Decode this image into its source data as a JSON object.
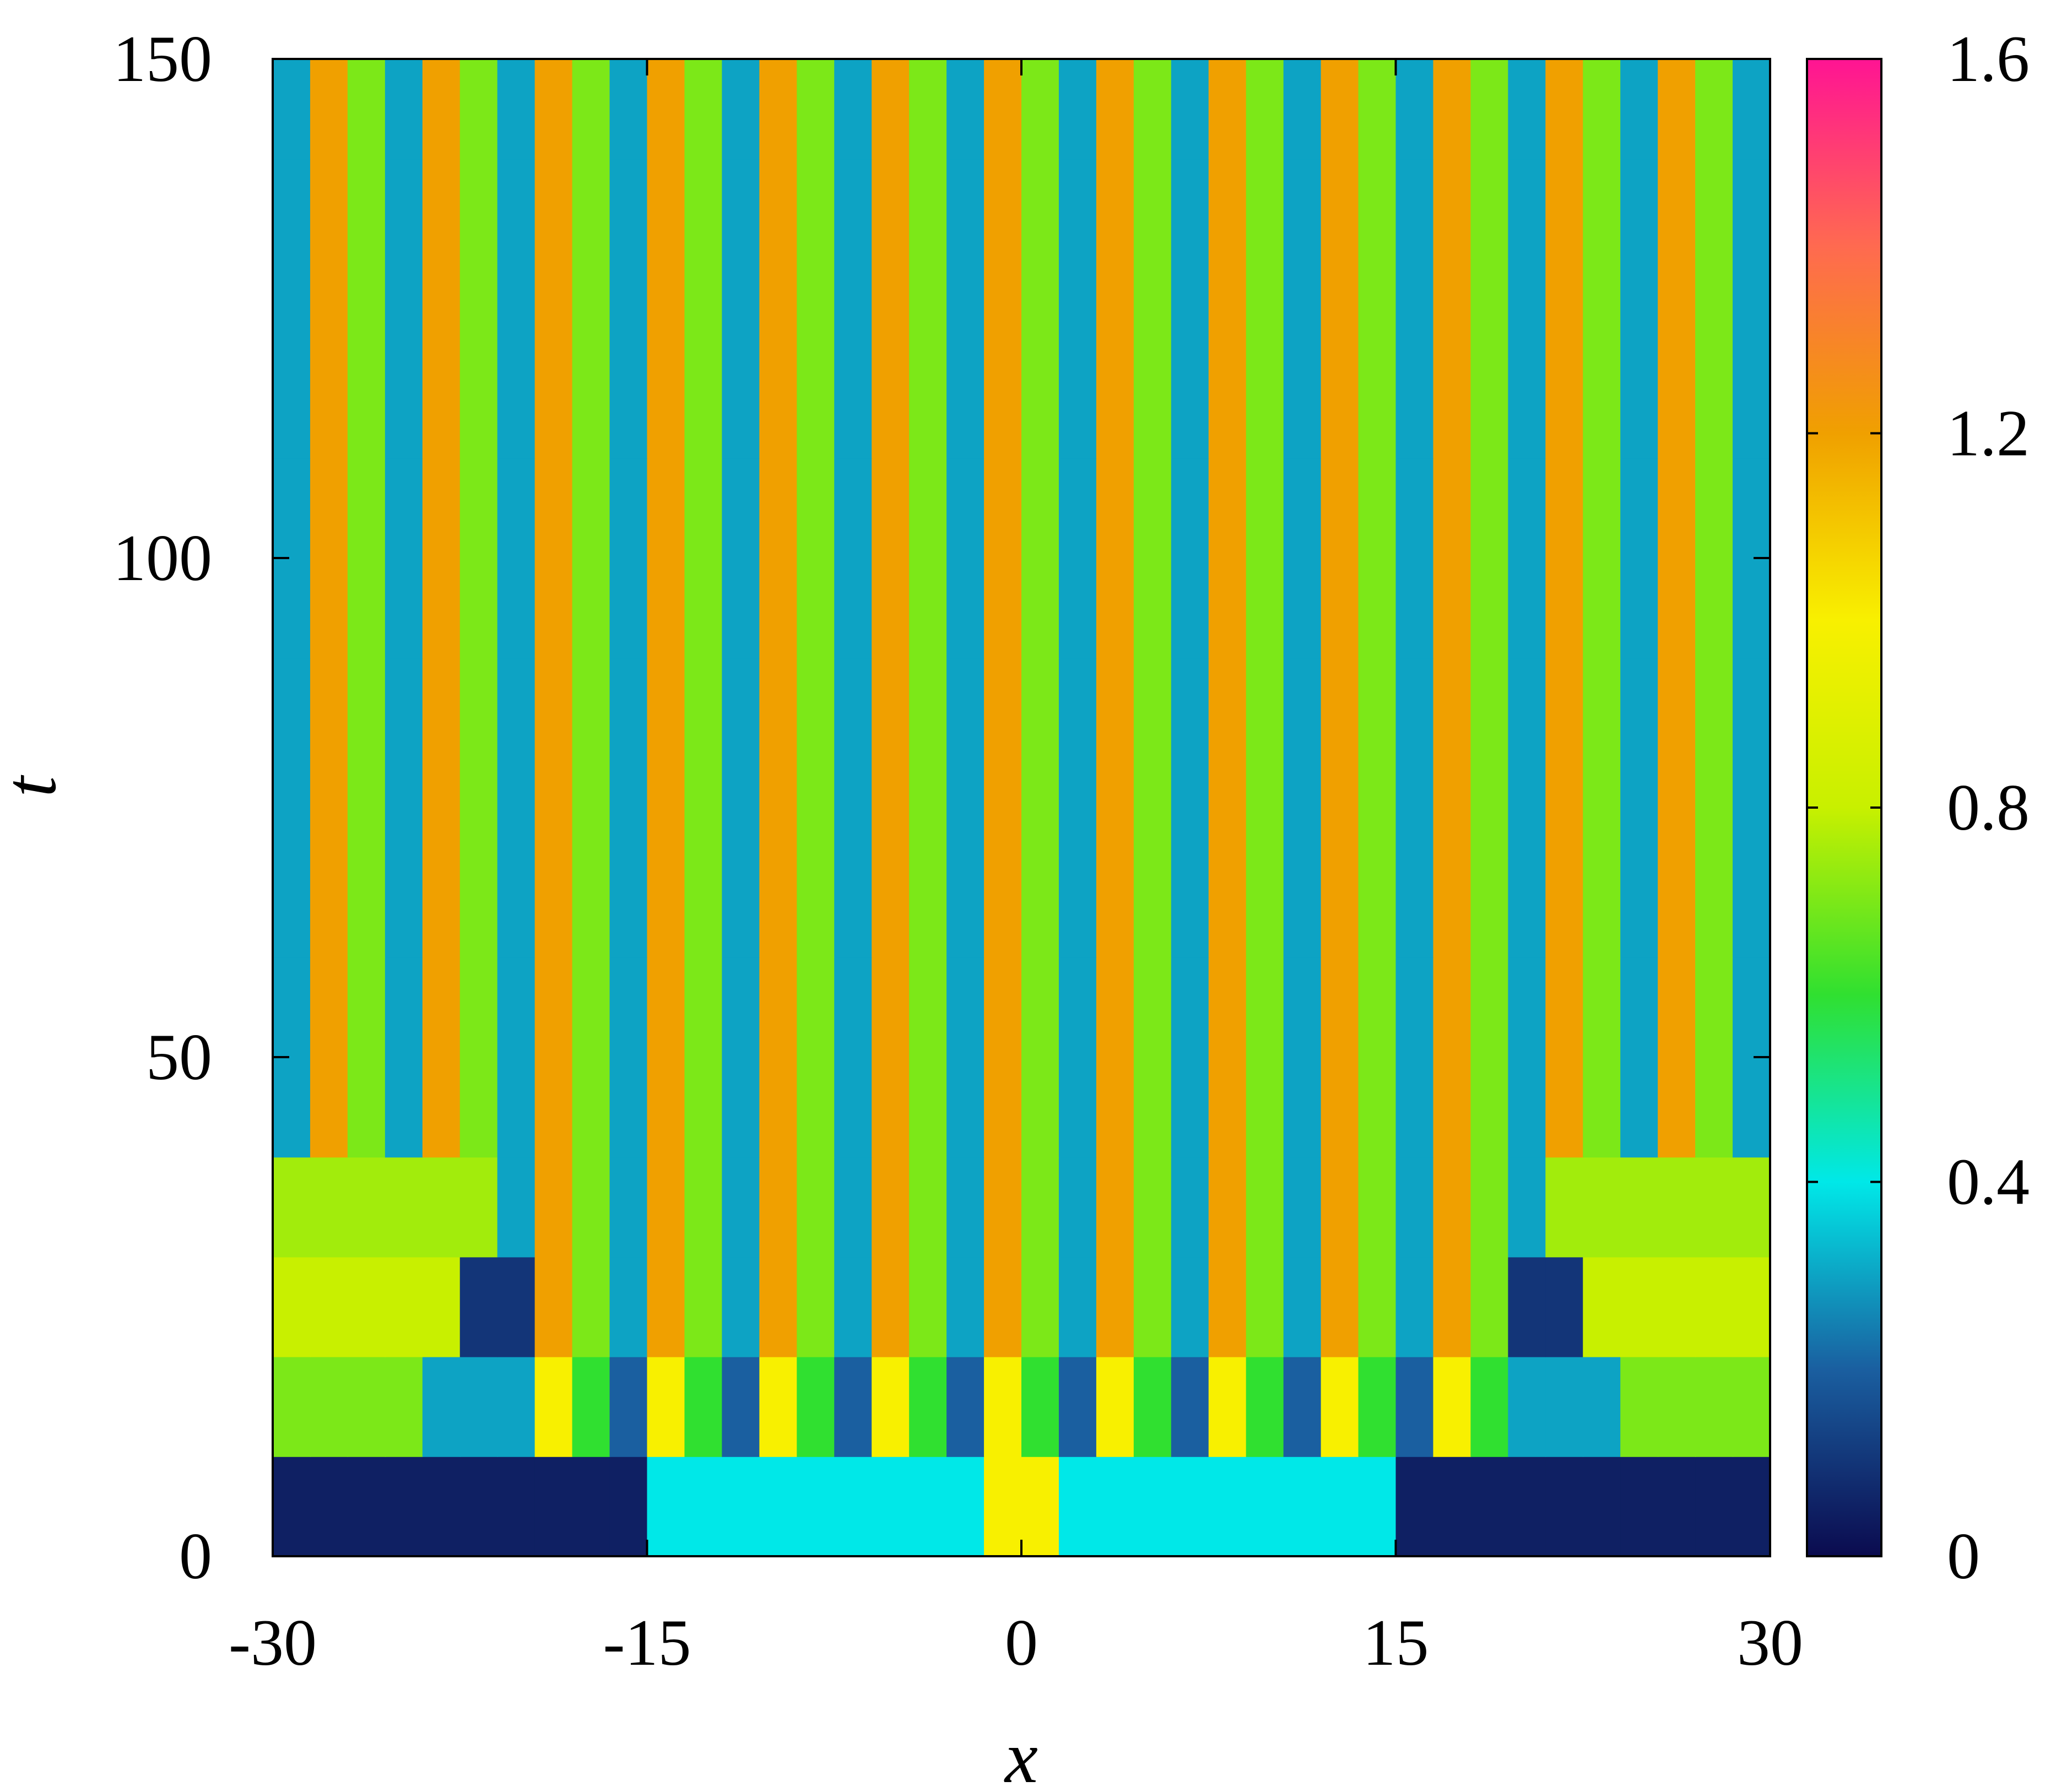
{
  "chart_data": {
    "type": "heatmap",
    "x_label": "x",
    "y_label": "t",
    "xlim": [
      -30,
      30
    ],
    "ylim": [
      0,
      150
    ],
    "xticks": [
      -30,
      -15,
      0,
      15,
      30
    ],
    "yticks": [
      0,
      50,
      100,
      150
    ],
    "clim": [
      0,
      1.6
    ],
    "cticks": [
      0,
      0.4,
      0.8,
      1.2,
      1.6
    ],
    "colormap": [
      "#0b0b4f",
      "#1a5fa0",
      "#00e8e8",
      "#30e030",
      "#c8f000",
      "#f8f000",
      "#f0a000",
      "#ff6a50",
      "#ff1493"
    ],
    "z": [
      [
        0.05,
        0.05,
        0.05,
        0.05,
        0.05,
        0.05,
        0.05,
        0.05,
        0.05,
        0.05,
        0.4,
        0.4,
        0.4,
        0.4,
        0.4,
        0.4,
        0.4,
        0.4,
        0.4,
        1.0,
        1.0,
        0.4,
        0.4,
        0.4,
        0.4,
        0.4,
        0.4,
        0.4,
        0.4,
        0.4,
        0.05,
        0.05,
        0.05,
        0.05,
        0.05,
        0.05,
        0.05,
        0.05,
        0.05,
        0.05
      ],
      [
        0.7,
        0.7,
        0.7,
        0.7,
        0.3,
        0.3,
        0.3,
        1.0,
        0.6,
        0.2,
        1.0,
        0.6,
        0.2,
        1.0,
        0.6,
        0.2,
        1.0,
        0.6,
        0.2,
        1.0,
        0.6,
        0.2,
        1.0,
        0.6,
        0.2,
        1.0,
        0.6,
        0.2,
        1.0,
        0.6,
        0.2,
        1.0,
        0.6,
        0.3,
        0.3,
        0.3,
        0.7,
        0.7,
        0.7,
        0.7
      ],
      [
        0.8,
        0.8,
        0.8,
        0.8,
        0.8,
        0.1,
        0.1,
        1.2,
        0.7,
        0.3,
        1.2,
        0.7,
        0.3,
        1.2,
        0.7,
        0.3,
        1.2,
        0.7,
        0.3,
        1.2,
        0.7,
        0.3,
        1.2,
        0.7,
        0.3,
        1.2,
        0.7,
        0.3,
        1.2,
        0.7,
        0.3,
        1.2,
        0.7,
        0.1,
        0.1,
        0.8,
        0.8,
        0.8,
        0.8,
        0.8
      ],
      [
        0.75,
        0.75,
        0.75,
        0.75,
        0.75,
        0.75,
        0.3,
        1.2,
        0.7,
        0.3,
        1.2,
        0.7,
        0.3,
        1.2,
        0.7,
        0.3,
        1.2,
        0.7,
        0.3,
        1.2,
        0.7,
        0.3,
        1.2,
        0.7,
        0.3,
        1.2,
        0.7,
        0.3,
        1.2,
        0.7,
        0.3,
        1.2,
        0.7,
        0.3,
        0.75,
        0.75,
        0.75,
        0.75,
        0.75,
        0.75
      ],
      [
        0.3,
        1.2,
        0.7,
        0.3,
        1.2,
        0.7,
        0.3,
        1.2,
        0.7,
        0.3,
        1.2,
        0.7,
        0.3,
        1.2,
        0.7,
        0.3,
        1.2,
        0.7,
        0.3,
        1.2,
        0.7,
        0.3,
        1.2,
        0.7,
        0.3,
        1.2,
        0.7,
        0.3,
        1.2,
        0.7,
        0.3,
        1.2,
        0.7,
        0.3,
        1.2,
        0.7,
        0.3,
        1.2,
        0.7,
        0.3
      ],
      [
        0.3,
        1.2,
        0.7,
        0.3,
        1.2,
        0.7,
        0.3,
        1.2,
        0.7,
        0.3,
        1.2,
        0.7,
        0.3,
        1.2,
        0.7,
        0.3,
        1.2,
        0.7,
        0.3,
        1.2,
        0.7,
        0.3,
        1.2,
        0.7,
        0.3,
        1.2,
        0.7,
        0.3,
        1.2,
        0.7,
        0.3,
        1.2,
        0.7,
        0.3,
        1.2,
        0.7,
        0.3,
        1.2,
        0.7,
        0.3
      ],
      [
        0.3,
        1.2,
        0.7,
        0.3,
        1.2,
        0.7,
        0.3,
        1.2,
        0.7,
        0.3,
        1.2,
        0.7,
        0.3,
        1.2,
        0.7,
        0.3,
        1.2,
        0.7,
        0.3,
        1.2,
        0.7,
        0.3,
        1.2,
        0.7,
        0.3,
        1.2,
        0.7,
        0.3,
        1.2,
        0.7,
        0.3,
        1.2,
        0.7,
        0.3,
        1.2,
        0.7,
        0.3,
        1.2,
        0.7,
        0.3
      ],
      [
        0.3,
        1.2,
        0.7,
        0.3,
        1.2,
        0.7,
        0.3,
        1.2,
        0.7,
        0.3,
        1.2,
        0.7,
        0.3,
        1.2,
        0.7,
        0.3,
        1.2,
        0.7,
        0.3,
        1.2,
        0.7,
        0.3,
        1.2,
        0.7,
        0.3,
        1.2,
        0.7,
        0.3,
        1.2,
        0.7,
        0.3,
        1.2,
        0.7,
        0.3,
        1.2,
        0.7,
        0.3,
        1.2,
        0.7,
        0.3
      ],
      [
        0.3,
        1.2,
        0.7,
        0.3,
        1.2,
        0.7,
        0.3,
        1.2,
        0.7,
        0.3,
        1.2,
        0.7,
        0.3,
        1.2,
        0.7,
        0.3,
        1.2,
        0.7,
        0.3,
        1.2,
        0.7,
        0.3,
        1.2,
        0.7,
        0.3,
        1.2,
        0.7,
        0.3,
        1.2,
        0.7,
        0.3,
        1.2,
        0.7,
        0.3,
        1.2,
        0.7,
        0.3,
        1.2,
        0.7,
        0.3
      ],
      [
        0.3,
        1.2,
        0.7,
        0.3,
        1.2,
        0.7,
        0.3,
        1.2,
        0.7,
        0.3,
        1.2,
        0.7,
        0.3,
        1.2,
        0.7,
        0.3,
        1.2,
        0.7,
        0.3,
        1.2,
        0.7,
        0.3,
        1.2,
        0.7,
        0.3,
        1.2,
        0.7,
        0.3,
        1.2,
        0.7,
        0.3,
        1.2,
        0.7,
        0.3,
        1.2,
        0.7,
        0.3,
        1.2,
        0.7,
        0.3
      ],
      [
        0.3,
        1.2,
        0.7,
        0.3,
        1.2,
        0.7,
        0.3,
        1.2,
        0.7,
        0.3,
        1.2,
        0.7,
        0.3,
        1.2,
        0.7,
        0.3,
        1.2,
        0.7,
        0.3,
        1.2,
        0.7,
        0.3,
        1.2,
        0.7,
        0.3,
        1.2,
        0.7,
        0.3,
        1.2,
        0.7,
        0.3,
        1.2,
        0.7,
        0.3,
        1.2,
        0.7,
        0.3,
        1.2,
        0.7,
        0.3
      ],
      [
        0.3,
        1.2,
        0.7,
        0.3,
        1.2,
        0.7,
        0.3,
        1.2,
        0.7,
        0.3,
        1.2,
        0.7,
        0.3,
        1.2,
        0.7,
        0.3,
        1.2,
        0.7,
        0.3,
        1.2,
        0.7,
        0.3,
        1.2,
        0.7,
        0.3,
        1.2,
        0.7,
        0.3,
        1.2,
        0.7,
        0.3,
        1.2,
        0.7,
        0.3,
        1.2,
        0.7,
        0.3,
        1.2,
        0.7,
        0.3
      ],
      [
        0.3,
        1.2,
        0.7,
        0.3,
        1.2,
        0.7,
        0.3,
        1.2,
        0.7,
        0.3,
        1.2,
        0.7,
        0.3,
        1.2,
        0.7,
        0.3,
        1.2,
        0.7,
        0.3,
        1.2,
        0.7,
        0.3,
        1.2,
        0.7,
        0.3,
        1.2,
        0.7,
        0.3,
        1.2,
        0.7,
        0.3,
        1.2,
        0.7,
        0.3,
        1.2,
        0.7,
        0.3,
        1.2,
        0.7,
        0.3
      ],
      [
        0.3,
        1.2,
        0.7,
        0.3,
        1.2,
        0.7,
        0.3,
        1.2,
        0.7,
        0.3,
        1.2,
        0.7,
        0.3,
        1.2,
        0.7,
        0.3,
        1.2,
        0.7,
        0.3,
        1.2,
        0.7,
        0.3,
        1.2,
        0.7,
        0.3,
        1.2,
        0.7,
        0.3,
        1.2,
        0.7,
        0.3,
        1.2,
        0.7,
        0.3,
        1.2,
        0.7,
        0.3,
        1.2,
        0.7,
        0.3
      ],
      [
        0.3,
        1.2,
        0.7,
        0.3,
        1.2,
        0.7,
        0.3,
        1.2,
        0.7,
        0.3,
        1.2,
        0.7,
        0.3,
        1.2,
        0.7,
        0.3,
        1.2,
        0.7,
        0.3,
        1.2,
        0.7,
        0.3,
        1.2,
        0.7,
        0.3,
        1.2,
        0.7,
        0.3,
        1.2,
        0.7,
        0.3,
        1.2,
        0.7,
        0.3,
        1.2,
        0.7,
        0.3,
        1.2,
        0.7,
        0.3
      ]
    ]
  }
}
